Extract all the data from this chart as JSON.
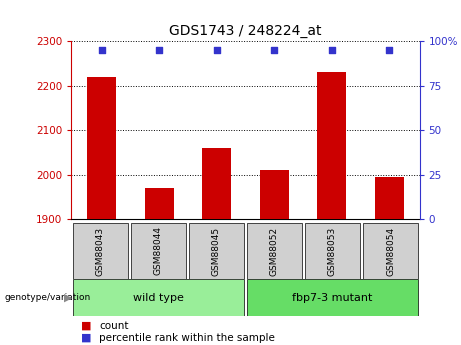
{
  "title": "GDS1743 / 248224_at",
  "samples": [
    "GSM88043",
    "GSM88044",
    "GSM88045",
    "GSM88052",
    "GSM88053",
    "GSM88054"
  ],
  "counts": [
    2220,
    1970,
    2060,
    2010,
    2230,
    1995
  ],
  "percentile_ranks": [
    95,
    95,
    95,
    95,
    95,
    95
  ],
  "ylim_left": [
    1900,
    2300
  ],
  "ylim_right": [
    0,
    100
  ],
  "yticks_left": [
    1900,
    2000,
    2100,
    2200,
    2300
  ],
  "yticks_right": [
    0,
    25,
    50,
    75,
    100
  ],
  "bar_color": "#cc0000",
  "dot_color": "#3333cc",
  "bar_width": 0.5,
  "groups": [
    {
      "label": "wild type",
      "indices": [
        0,
        1,
        2
      ],
      "color": "#99ee99"
    },
    {
      "label": "fbp7-3 mutant",
      "indices": [
        3,
        4,
        5
      ],
      "color": "#66dd66"
    }
  ],
  "group_label": "genotype/variation",
  "legend_count_label": "count",
  "legend_pct_label": "percentile rank within the sample",
  "title_fontsize": 10,
  "left_tick_color": "#cc0000",
  "right_tick_color": "#3333cc",
  "grid_color": "black"
}
